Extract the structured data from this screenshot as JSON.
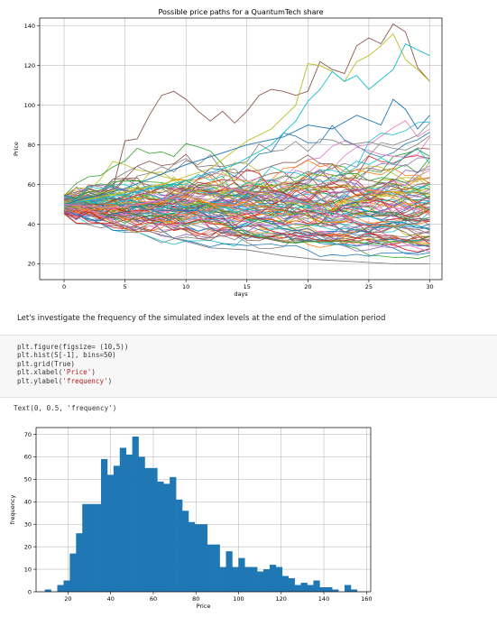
{
  "chart_data": [
    {
      "type": "line",
      "title": "Possible price paths for a QuantumTech share",
      "xlabel": "days",
      "ylabel": "Price",
      "xlim": [
        -2,
        31
      ],
      "ylim": [
        12,
        144
      ],
      "xticks": [
        0,
        5,
        10,
        15,
        20,
        25,
        30
      ],
      "yticks": [
        20,
        40,
        60,
        80,
        100,
        120,
        140
      ],
      "grid": true,
      "n_paths": 100,
      "start_price": 50,
      "highlight_series": [
        {
          "name": "",
          "color": "#8c564b",
          "x": [
            0,
            3,
            4,
            5,
            6,
            7,
            8,
            9,
            10,
            11,
            12,
            13,
            14,
            15,
            16,
            17,
            18,
            19,
            20,
            21,
            22,
            23,
            24,
            25,
            26,
            27,
            28,
            29,
            30
          ],
          "values": [
            50,
            55,
            58,
            82,
            83,
            95,
            105,
            107,
            103,
            97,
            92,
            97,
            91,
            97,
            105,
            108,
            107,
            105,
            107,
            122,
            118,
            116,
            130,
            134,
            131,
            141,
            137,
            119,
            112
          ]
        },
        {
          "name": "",
          "color": "#bcbd22",
          "x": [
            0,
            4,
            8,
            12,
            15,
            17,
            19,
            20,
            21,
            22,
            23,
            24,
            25,
            26,
            27,
            28,
            29,
            30
          ],
          "values": [
            50,
            55,
            60,
            68,
            82,
            88,
            100,
            121,
            120,
            117,
            112,
            122,
            125,
            130,
            136,
            123,
            118,
            112
          ]
        },
        {
          "name": "",
          "color": "#17becf",
          "x": [
            0,
            5,
            10,
            14,
            17,
            19,
            20,
            21,
            22,
            23,
            24,
            25,
            26,
            27,
            28,
            29,
            30
          ],
          "values": [
            50,
            55,
            62,
            70,
            80,
            92,
            102,
            108,
            117,
            112,
            115,
            108,
            113,
            118,
            131,
            128,
            125
          ]
        },
        {
          "name": "",
          "color": "#1f77b4",
          "x": [
            0,
            5,
            10,
            15,
            18,
            20,
            22,
            24,
            26,
            27,
            28,
            29,
            30
          ],
          "values": [
            50,
            58,
            70,
            80,
            84,
            90,
            88,
            95,
            90,
            103,
            98,
            88,
            95
          ]
        },
        {
          "name": "",
          "color": "#7f7f7f",
          "x": [
            0,
            3,
            6,
            9,
            12,
            15,
            18,
            21,
            24,
            27,
            30
          ],
          "values": [
            50,
            42,
            38,
            33,
            28,
            27,
            24,
            22,
            21,
            20,
            20
          ]
        },
        {
          "name": "",
          "color": "#e377c2",
          "x": [
            0,
            4,
            8,
            12,
            16,
            20,
            23,
            26,
            28,
            30
          ],
          "values": [
            50,
            48,
            52,
            60,
            55,
            50,
            44,
            36,
            30,
            26
          ]
        }
      ]
    },
    {
      "type": "bar",
      "title": "",
      "xlabel": "Price",
      "ylabel": "frequency",
      "xlim": [
        5,
        162
      ],
      "ylim": [
        0,
        73
      ],
      "xticks": [
        20,
        40,
        60,
        80,
        100,
        120,
        140,
        160
      ],
      "yticks": [
        0,
        10,
        20,
        30,
        40,
        50,
        60,
        70
      ],
      "grid": true,
      "color": "#1f77b4",
      "bins": 50,
      "bin_start": 9.1,
      "bin_width": 2.93,
      "values": [
        1,
        0,
        3,
        5,
        17,
        26,
        39,
        39,
        39,
        59,
        52,
        56,
        64,
        61,
        69,
        60,
        55,
        55,
        49,
        48,
        51,
        41,
        36,
        31,
        30,
        30,
        21,
        21,
        11,
        18,
        11,
        15,
        11,
        11,
        9,
        10,
        12,
        11,
        7,
        6,
        3,
        4,
        3,
        5,
        2,
        2,
        1,
        0,
        3,
        1
      ]
    }
  ],
  "notebook": {
    "markdown_text": "Let's investigate the frequency of the simulated index levels at the end of the simulation period",
    "code": {
      "line1": "plt.figure(figsize= (10,5))",
      "line2": "plt.hist(S[-1], bins=50)",
      "line3": "plt.grid(True)",
      "line4_pre": "plt.xlabel(",
      "line4_str": "'Price'",
      "line4_post": ")",
      "line5_pre": "plt.ylabel(",
      "line5_str": "'frequency'",
      "line5_post": ")"
    },
    "output_text": "Text(0, 0.5, 'frequency')"
  }
}
